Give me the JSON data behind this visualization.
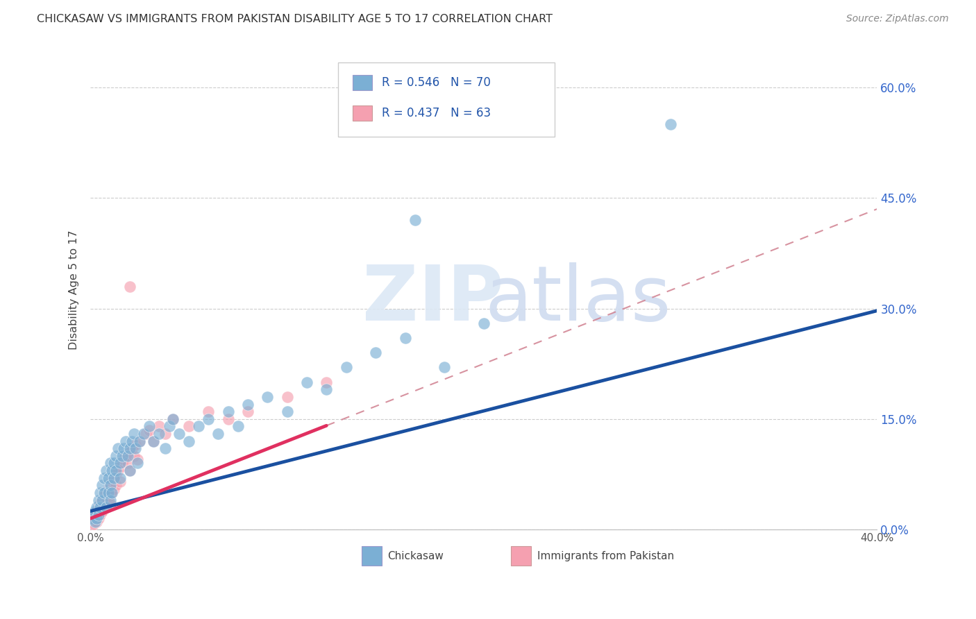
{
  "title": "CHICKASAW VS IMMIGRANTS FROM PAKISTAN DISABILITY AGE 5 TO 17 CORRELATION CHART",
  "source": "Source: ZipAtlas.com",
  "ylabel": "Disability Age 5 to 17",
  "ytick_values": [
    0.0,
    15.0,
    30.0,
    45.0,
    60.0
  ],
  "xlim": [
    0.0,
    40.0
  ],
  "ylim": [
    0.0,
    65.0
  ],
  "legend1_R": "0.546",
  "legend1_N": "70",
  "legend2_R": "0.437",
  "legend2_N": "63",
  "blue_color": "#7BAFD4",
  "pink_color": "#F5A0B0",
  "trend_blue": "#1A50A0",
  "trend_pink": "#E03060",
  "trend_pink_dashed_color": "#D08090",
  "watermark_zip_color": "#DCE8F5",
  "watermark_atlas_color": "#D0DCF0",
  "grid_color": "#CCCCCC",
  "bottom_legend_labels": [
    "Chickasaw",
    "Immigrants from Pakistan"
  ],
  "blue_trend_intercept": 2.5,
  "blue_trend_slope": 0.68,
  "pink_trend_intercept": 1.5,
  "pink_trend_slope": 1.05,
  "pink_solid_end_x": 12.0
}
